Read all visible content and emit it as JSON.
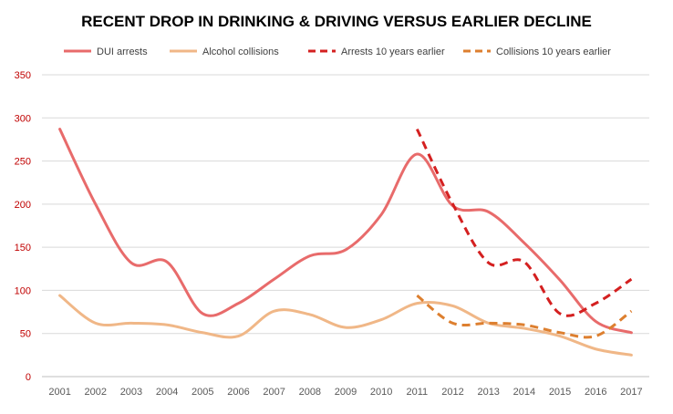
{
  "chart_data": {
    "type": "line",
    "title": "RECENT DROP IN DRINKING & DRIVING VERSUS EARLIER DECLINE",
    "xlabel": "",
    "ylabel": "",
    "categories": [
      "2001",
      "2002",
      "2003",
      "2004",
      "2005",
      "2006",
      "2007",
      "2008",
      "2009",
      "2010",
      "2011",
      "2012",
      "2013",
      "2014",
      "2015",
      "2016",
      "2017"
    ],
    "ylim": [
      0,
      350
    ],
    "yticks": [
      "0",
      "50",
      "100",
      "150",
      "200",
      "250",
      "300",
      "350"
    ],
    "grid": true,
    "legend_position": "top",
    "series": [
      {
        "name": "DUI arrests",
        "color": "#e86b6b",
        "dash": "solid",
        "values": [
          287,
          200,
          132,
          133,
          73,
          85,
          113,
          140,
          147,
          188,
          258,
          198,
          191,
          155,
          112,
          64,
          51
        ]
      },
      {
        "name": "Alcohol collisions",
        "color": "#f0b787",
        "dash": "solid",
        "values": [
          94,
          62,
          62,
          60,
          51,
          47,
          76,
          72,
          57,
          66,
          85,
          82,
          62,
          56,
          47,
          32,
          25
        ]
      },
      {
        "name": "Arrests 10 years earlier",
        "color": "#d42020",
        "dash": "dashed",
        "values": [
          null,
          null,
          null,
          null,
          null,
          null,
          null,
          null,
          null,
          null,
          287,
          200,
          132,
          133,
          73,
          85,
          113
        ]
      },
      {
        "name": "Collisions 10 years earlier",
        "color": "#dd7f2f",
        "dash": "dashed",
        "values": [
          null,
          null,
          null,
          null,
          null,
          null,
          null,
          null,
          null,
          null,
          94,
          62,
          62,
          60,
          51,
          47,
          76
        ]
      }
    ]
  }
}
